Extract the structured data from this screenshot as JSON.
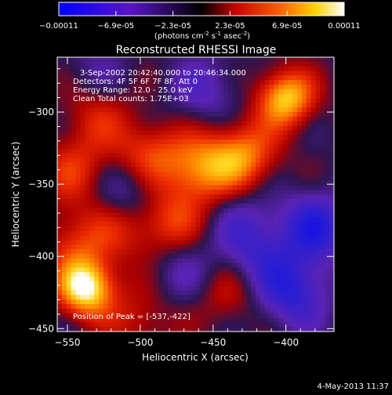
{
  "chart_data": {
    "type": "heatmap",
    "title": "Reconstructed RHESSI Image",
    "xlabel": "Heliocentric X (arcsec)",
    "ylabel": "Heliocentric Y (arcsec)",
    "xlim": [
      -557,
      -367
    ],
    "ylim": [
      -452,
      -262
    ],
    "x_ticks": [
      -550,
      -500,
      -450,
      -400
    ],
    "y_ticks": [
      -450,
      -400,
      -350,
      -300
    ],
    "colorbar": {
      "ticks": [
        "-0.00011",
        "-6.9e-05",
        "-2.3e-05",
        "2.3e-05",
        "6.9e-05",
        "0.00011"
      ],
      "label_main": "(photons cm",
      "label_exp1": "-2",
      "label_mid1": " s",
      "label_exp2": "-1",
      "label_mid2": " asec",
      "label_exp3": "-2",
      "label_end": ")",
      "range": [
        -0.00011,
        0.00011
      ]
    },
    "info_lines": [
      "3-Sep-2002 20:42:40.000 to 20:46:34.000",
      "Detectors: 4F 5F 6F 7F 8F, Att 0",
      "Energy Range: 12.0 - 25.0 keV",
      "Clean     Total counts: 1.75E+03"
    ],
    "peak_label": "Position of Peak = [-537,-422]",
    "peak": [
      -537,
      -422
    ],
    "blobs": [
      {
        "x": -537,
        "y": -422,
        "v": 1.0
      },
      {
        "x": -400,
        "y": -290,
        "v": 0.85
      },
      {
        "x": -430,
        "y": -330,
        "v": 0.65
      },
      {
        "x": -460,
        "y": -340,
        "v": 0.6
      },
      {
        "x": -495,
        "y": -330,
        "v": 0.5
      },
      {
        "x": -480,
        "y": -375,
        "v": 0.45
      },
      {
        "x": -545,
        "y": -340,
        "v": 0.4
      },
      {
        "x": -530,
        "y": -300,
        "v": 0.35
      },
      {
        "x": -510,
        "y": -380,
        "v": 0.3
      },
      {
        "x": -545,
        "y": -390,
        "v": 0.4
      },
      {
        "x": -440,
        "y": -425,
        "v": 0.3
      },
      {
        "x": -500,
        "y": -445,
        "v": 0.3
      },
      {
        "x": -380,
        "y": -380,
        "v": -0.6
      },
      {
        "x": -395,
        "y": -425,
        "v": -0.55
      },
      {
        "x": -505,
        "y": -355,
        "v": -0.4
      },
      {
        "x": -455,
        "y": -285,
        "v": -0.3
      },
      {
        "x": -420,
        "y": -400,
        "v": -0.35
      },
      {
        "x": -470,
        "y": -410,
        "v": -0.25
      },
      {
        "x": -430,
        "y": -375,
        "v": -0.25
      },
      {
        "x": -530,
        "y": -275,
        "v": -0.2
      }
    ]
  },
  "footer": {
    "date": "4-May-2013 11:37"
  }
}
